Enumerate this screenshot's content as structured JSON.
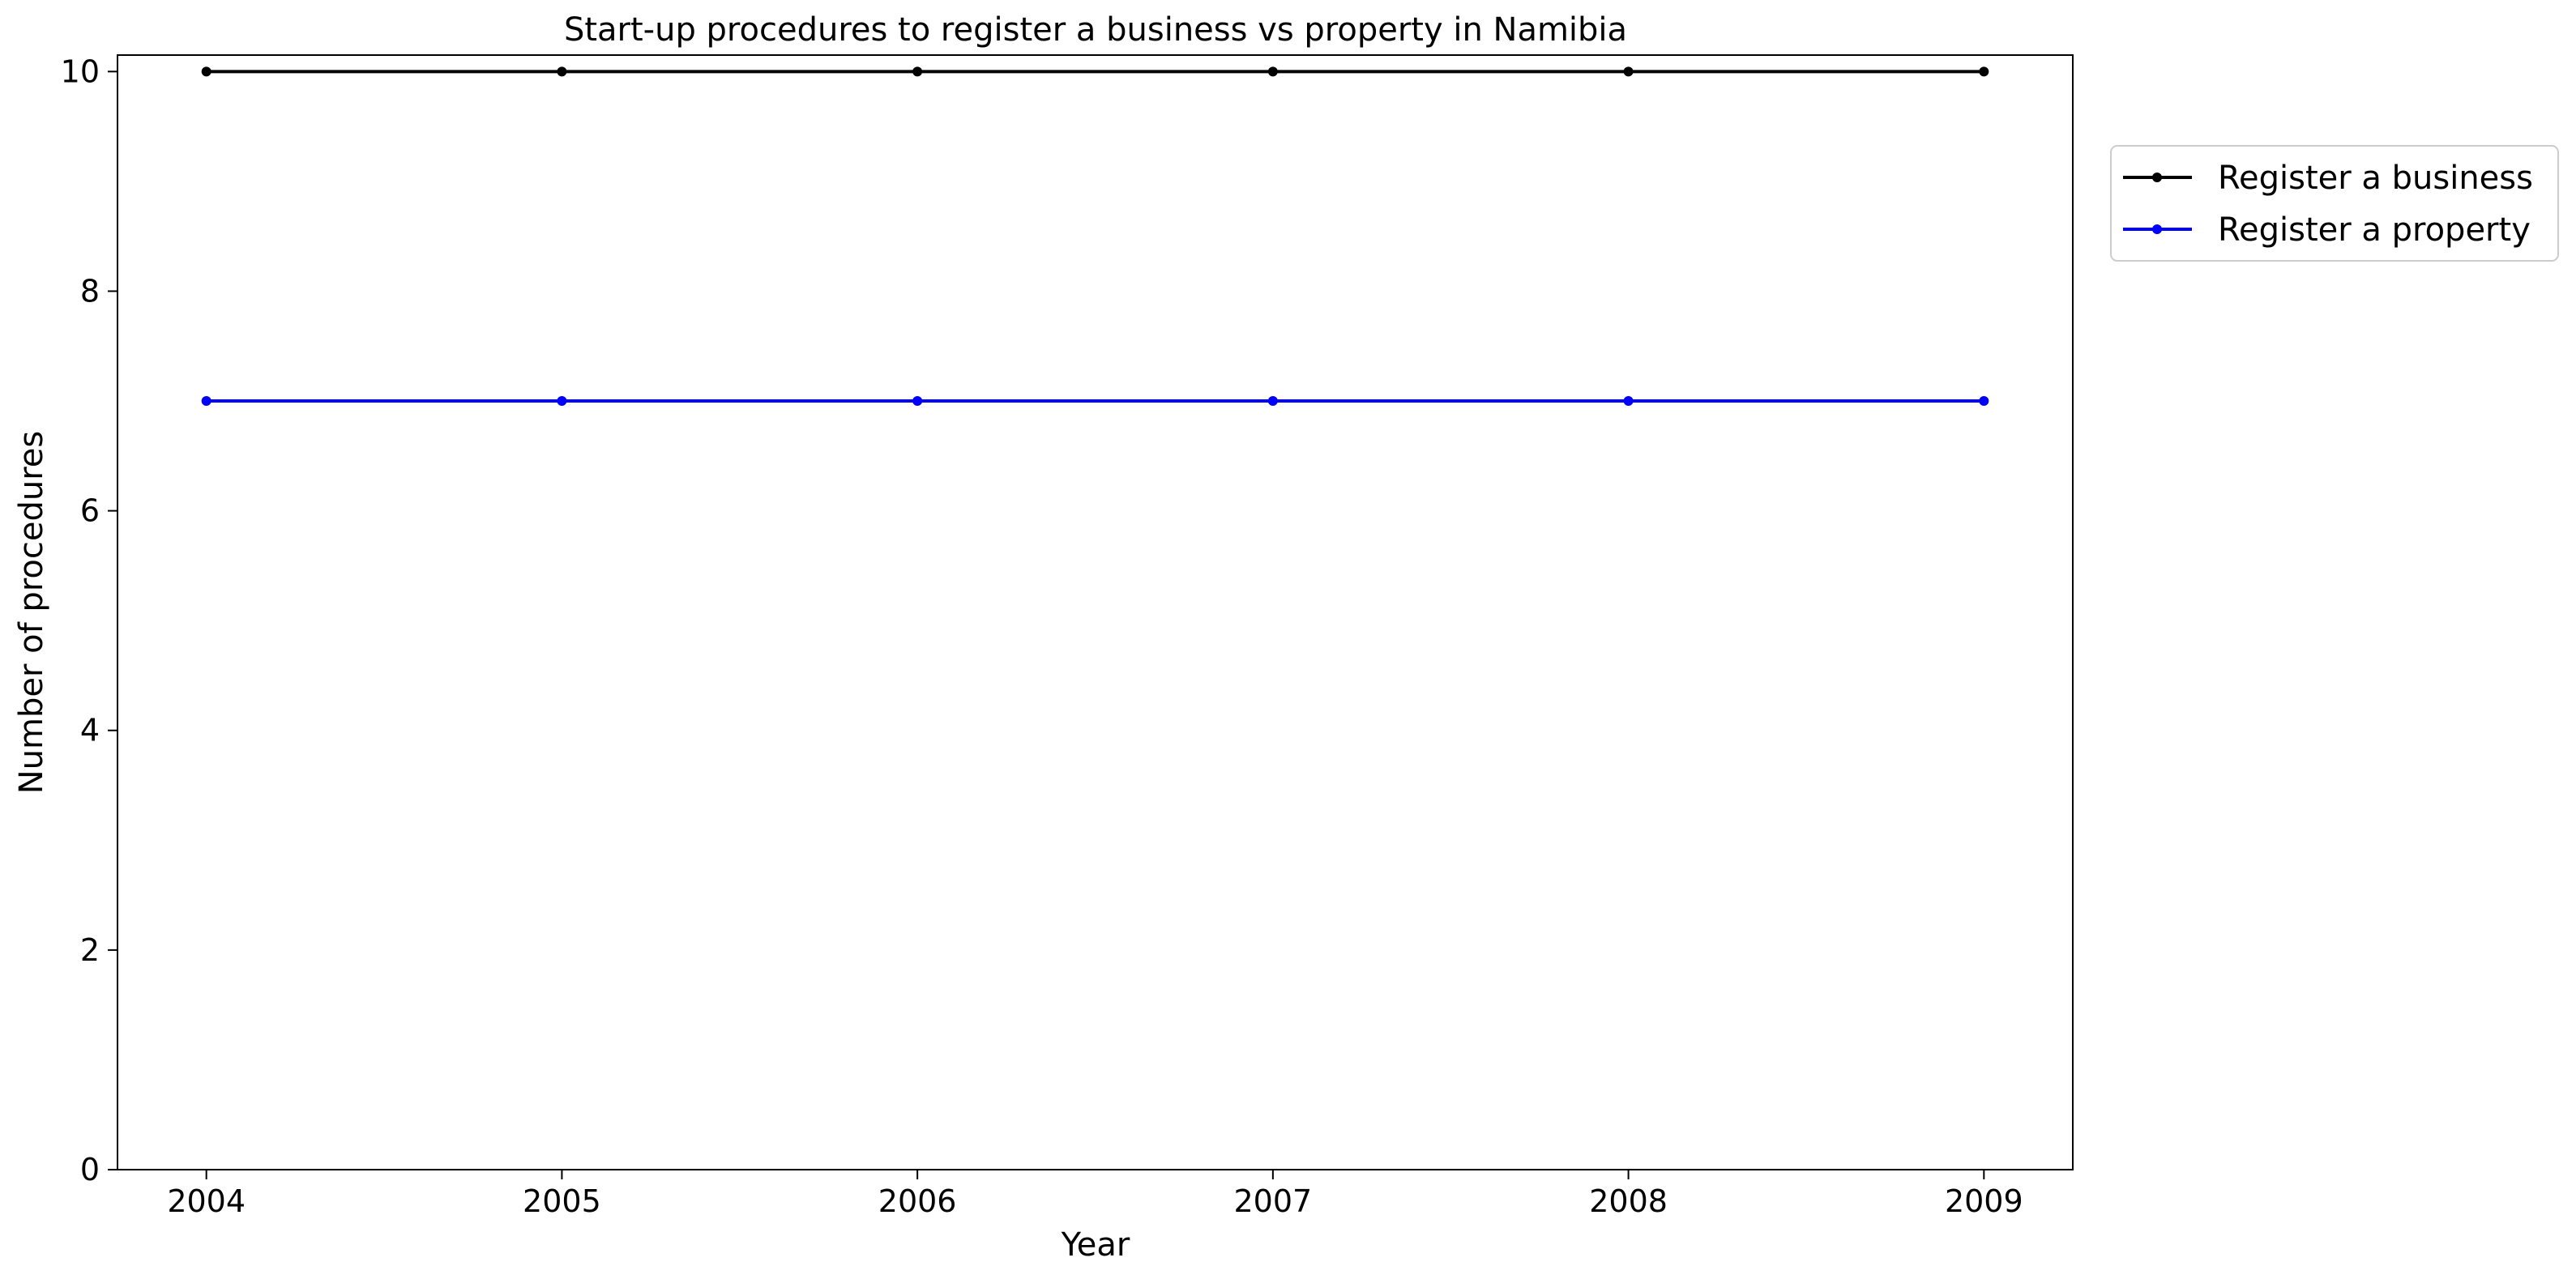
{
  "chart_data": {
    "type": "line",
    "title": "Start-up procedures to register a business vs property in Namibia",
    "xlabel": "Year",
    "ylabel": "Number of procedures",
    "x": [
      2004,
      2005,
      2006,
      2007,
      2008,
      2009
    ],
    "xticks": [
      "2004",
      "2005",
      "2006",
      "2007",
      "2008",
      "2009"
    ],
    "yticks": [
      "0",
      "2",
      "4",
      "6",
      "8",
      "10"
    ],
    "ylim": [
      0,
      10.15
    ],
    "xlim": [
      2003.75,
      2009.25
    ],
    "grid": false,
    "legend_position": "outside-top-right",
    "series": [
      {
        "name": "Register a business",
        "color": "#000000",
        "marker": "dot",
        "values": [
          10,
          10,
          10,
          10,
          10,
          10
        ]
      },
      {
        "name": "Register a property",
        "color": "#0000ff",
        "marker": "dot",
        "values": [
          7,
          7,
          7,
          7,
          7,
          7
        ]
      }
    ]
  }
}
